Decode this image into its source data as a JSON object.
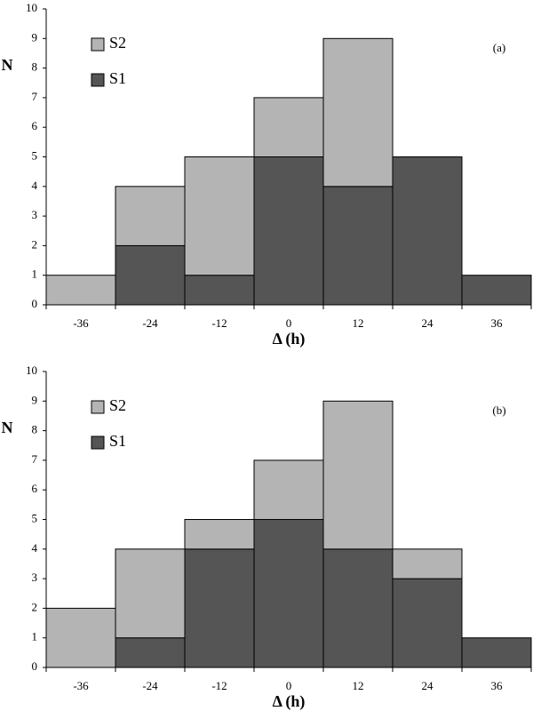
{
  "chart_data": [
    {
      "type": "bar",
      "stacked": true,
      "annotation": "(a)",
      "xlabel": "Δ (h)",
      "ylabel": "N",
      "categories": [
        "-36",
        "-24",
        "-12",
        "0",
        "12",
        "24",
        "36"
      ],
      "series": [
        {
          "name": "S1",
          "color": "#555555",
          "values": [
            0,
            2,
            1,
            5,
            4,
            5,
            1
          ]
        },
        {
          "name": "S2",
          "color": "#b4b4b4",
          "values": [
            1,
            2,
            4,
            2,
            5,
            0,
            0
          ]
        }
      ],
      "ylim": [
        0,
        10
      ],
      "yticks": [
        0,
        1,
        2,
        3,
        4,
        5,
        6,
        7,
        8,
        9,
        10
      ]
    },
    {
      "type": "bar",
      "stacked": true,
      "annotation": "(b)",
      "xlabel": "Δ (h)",
      "ylabel": "N",
      "categories": [
        "-36",
        "-24",
        "-12",
        "0",
        "12",
        "24",
        "36"
      ],
      "series": [
        {
          "name": "S1",
          "color": "#555555",
          "values": [
            0,
            1,
            4,
            5,
            4,
            3,
            1
          ]
        },
        {
          "name": "S2",
          "color": "#b4b4b4",
          "values": [
            2,
            3,
            1,
            2,
            5,
            1,
            0
          ]
        }
      ],
      "ylim": [
        0,
        10
      ],
      "yticks": [
        0,
        1,
        2,
        3,
        4,
        5,
        6,
        7,
        8,
        9,
        10
      ]
    }
  ]
}
